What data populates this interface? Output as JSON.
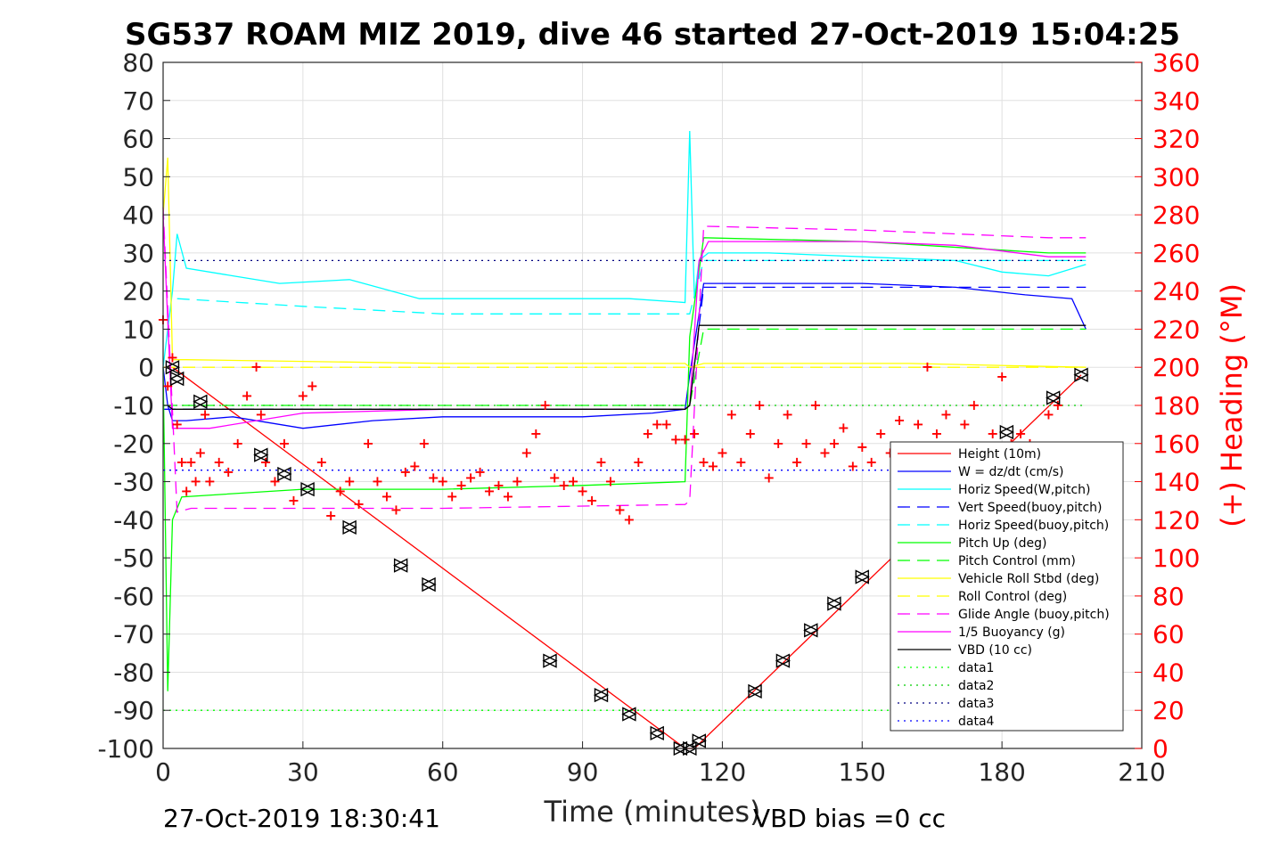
{
  "chart_data": {
    "type": "line",
    "title": "SG537 ROAM MIZ 2019, dive 46 started 27-Oct-2019 15:04:25",
    "xlabel": "Time (minutes)",
    "ylabel": "",
    "y2label": "(+) Heading (°M)",
    "xlim": [
      0,
      210
    ],
    "ylim": [
      -100,
      80
    ],
    "y2lim": [
      0,
      360
    ],
    "x_ticks": [
      "0",
      "30",
      "60",
      "90",
      "120",
      "150",
      "180",
      "210"
    ],
    "y_ticks": [
      "80",
      "70",
      "60",
      "50",
      "40",
      "30",
      "20",
      "10",
      "0",
      "-10",
      "-20",
      "-30",
      "-40",
      "-50",
      "-60",
      "-70",
      "-80",
      "-90",
      "-100"
    ],
    "y2_ticks": [
      "360",
      "340",
      "320",
      "300",
      "280",
      "260",
      "240",
      "220",
      "200",
      "180",
      "160",
      "140",
      "120",
      "100",
      "80",
      "60",
      "40",
      "20",
      "0"
    ],
    "grid": true,
    "legend_position": "lower-right",
    "footer_left": "27-Oct-2019 18:30:41",
    "footer_right": "VBD bias =0 cc",
    "legend": [
      {
        "name": "Height (10m)",
        "color": "#ff0000",
        "dash": "solid"
      },
      {
        "name": "W = dz/dt (cm/s)",
        "color": "#0000ff",
        "dash": "solid"
      },
      {
        "name": "Horiz Speed(W,pitch)",
        "color": "#00ffff",
        "dash": "solid"
      },
      {
        "name": "Vert Speed(buoy,pitch)",
        "color": "#0000ff",
        "dash": "dashed"
      },
      {
        "name": "Horiz Speed(buoy,pitch)",
        "color": "#00ffff",
        "dash": "dashed"
      },
      {
        "name": "Pitch Up (deg)",
        "color": "#00ff00",
        "dash": "solid"
      },
      {
        "name": "Pitch Control (mm)",
        "color": "#00ff00",
        "dash": "dashed"
      },
      {
        "name": "Vehicle Roll Stbd (deg)",
        "color": "#ffff00",
        "dash": "solid"
      },
      {
        "name": "Roll Control (deg)",
        "color": "#ffff00",
        "dash": "dashed"
      },
      {
        "name": "Glide Angle (buoy,pitch)",
        "color": "#ff00ff",
        "dash": "dashed"
      },
      {
        "name": "1/5 Buoyancy (g)",
        "color": "#ff00ff",
        "dash": "solid"
      },
      {
        "name": "VBD (10 cc)",
        "color": "#000000",
        "dash": "solid"
      },
      {
        "name": "data1",
        "color": "#00ff00",
        "dash": "dotted"
      },
      {
        "name": "data2",
        "color": "#00cc00",
        "dash": "dotted"
      },
      {
        "name": "data3",
        "color": "#000080",
        "dash": "dotted"
      },
      {
        "name": "data4",
        "color": "#0000ff",
        "dash": "dotted"
      }
    ],
    "series": [
      {
        "name": "Height (10m)",
        "axis": "left",
        "color": "#ff0000",
        "dash": "solid",
        "x": [
          0,
          2,
          112,
          114,
          197
        ],
        "y": [
          0,
          0,
          -100,
          -100,
          -2
        ]
      },
      {
        "name": "W = dz/dt (cm/s)",
        "axis": "left",
        "color": "#0000ff",
        "dash": "solid",
        "x": [
          0,
          1,
          2,
          5,
          15,
          30,
          45,
          60,
          75,
          90,
          105,
          112,
          113,
          116,
          130,
          150,
          170,
          185,
          195,
          198
        ],
        "y": [
          0,
          -10,
          -14,
          -14,
          -13,
          -16,
          -14,
          -13,
          -13,
          -13,
          -12,
          -11,
          -2,
          22,
          22,
          22,
          21,
          19,
          18,
          10
        ]
      },
      {
        "name": "Horiz Speed(W,pitch)",
        "axis": "left",
        "color": "#00ffff",
        "dash": "solid",
        "x": [
          0,
          2,
          3,
          5,
          15,
          25,
          40,
          55,
          70,
          85,
          100,
          112,
          113,
          114,
          115,
          117,
          130,
          150,
          170,
          180,
          190,
          198
        ],
        "y": [
          0,
          20,
          35,
          26,
          24,
          22,
          23,
          18,
          18,
          18,
          18,
          17,
          62,
          18,
          28,
          30,
          30,
          29,
          28,
          25,
          24,
          27
        ]
      },
      {
        "name": "Vert Speed(buoy,pitch)",
        "axis": "left",
        "color": "#0000ff",
        "dash": "dashed",
        "x": [
          0,
          112,
          113,
          116,
          198
        ],
        "y": [
          -11,
          -11,
          -10,
          21,
          21
        ]
      },
      {
        "name": "Horiz Speed(buoy,pitch)",
        "axis": "left",
        "color": "#00ffff",
        "dash": "dashed",
        "x": [
          3,
          30,
          60,
          90,
          112,
          113,
          116,
          198
        ],
        "y": [
          18,
          16,
          14,
          14,
          14,
          14,
          28,
          28
        ]
      },
      {
        "name": "Pitch Up (deg)",
        "axis": "left",
        "color": "#00ff00",
        "dash": "solid",
        "x": [
          0,
          1,
          2,
          4,
          30,
          60,
          90,
          112,
          113,
          116,
          150,
          190,
          198
        ],
        "y": [
          0,
          -85,
          -40,
          -34,
          -32,
          -32,
          -31,
          -30,
          8,
          34,
          33,
          30,
          30
        ]
      },
      {
        "name": "Pitch Control (mm)",
        "axis": "left",
        "color": "#00ff00",
        "dash": "dashed",
        "x": [
          0,
          112,
          113,
          116,
          198
        ],
        "y": [
          -10,
          -10,
          -10,
          10,
          10
        ]
      },
      {
        "name": "Vehicle Roll Stbd (deg)",
        "axis": "left",
        "color": "#ffff00",
        "dash": "solid",
        "x": [
          0,
          1,
          2,
          5,
          60,
          112,
          113,
          116,
          160,
          198
        ],
        "y": [
          40,
          55,
          2,
          2,
          1,
          1,
          0,
          1,
          1,
          0
        ]
      },
      {
        "name": "Roll Control (deg)",
        "axis": "left",
        "color": "#ffff00",
        "dash": "dashed",
        "x": [
          0,
          198
        ],
        "y": [
          0,
          0
        ]
      },
      {
        "name": "Glide Angle (buoy,pitch)",
        "axis": "left",
        "color": "#ff00ff",
        "dash": "dashed",
        "x": [
          0,
          3,
          6,
          60,
          112,
          113,
          116,
          150,
          190,
          198
        ],
        "y": [
          42,
          -38,
          -37,
          -37,
          -36,
          -35,
          37,
          36,
          34,
          34
        ]
      },
      {
        "name": "1/5 Buoyancy (g)",
        "axis": "left",
        "color": "#ff00ff",
        "dash": "solid",
        "x": [
          0,
          2,
          10,
          30,
          60,
          112,
          113,
          115,
          117,
          150,
          170,
          190,
          198
        ],
        "y": [
          40,
          -16,
          -16,
          -12,
          -11,
          -11,
          -10,
          28,
          33,
          33,
          32,
          29,
          29
        ]
      },
      {
        "name": "VBD (10 cc)",
        "axis": "left",
        "color": "#000000",
        "dash": "solid",
        "x": [
          0,
          1,
          2,
          112,
          113,
          115,
          198
        ],
        "y": [
          -10,
          -10,
          -11,
          -11,
          -10,
          11,
          11
        ]
      },
      {
        "name": "data1",
        "axis": "left",
        "color": "#00ff00",
        "dash": "dotted",
        "x": [
          0,
          198
        ],
        "y": [
          -90,
          -90
        ]
      },
      {
        "name": "data2",
        "axis": "left",
        "color": "#00cc00",
        "dash": "dotted",
        "x": [
          0,
          198
        ],
        "y": [
          -10,
          -10
        ]
      },
      {
        "name": "data3",
        "axis": "left",
        "color": "#000080",
        "dash": "dotted",
        "x": [
          0,
          198
        ],
        "y": [
          28,
          28
        ]
      },
      {
        "name": "data4",
        "axis": "left",
        "color": "#0000ff",
        "dash": "dotted",
        "x": [
          0,
          198
        ],
        "y": [
          -27,
          -27
        ]
      }
    ],
    "heading_points": {
      "axis": "right",
      "color": "#ff0000",
      "x": [
        0,
        1,
        2,
        3,
        4,
        5,
        6,
        7,
        8,
        9,
        10,
        12,
        14,
        16,
        18,
        20,
        21,
        22,
        24,
        26,
        28,
        30,
        32,
        34,
        36,
        38,
        40,
        42,
        44,
        46,
        48,
        50,
        52,
        54,
        56,
        58,
        60,
        62,
        64,
        66,
        68,
        70,
        72,
        74,
        76,
        78,
        80,
        82,
        84,
        86,
        88,
        90,
        92,
        94,
        96,
        98,
        100,
        102,
        104,
        106,
        108,
        110,
        112,
        114,
        116,
        118,
        120,
        122,
        124,
        126,
        128,
        130,
        132,
        134,
        136,
        138,
        140,
        142,
        144,
        146,
        148,
        150,
        152,
        154,
        156,
        158,
        160,
        162,
        164,
        166,
        168,
        170,
        172,
        174,
        176,
        178,
        180,
        182,
        184,
        186,
        188,
        190,
        192
      ],
      "y": [
        225,
        190,
        205,
        170,
        150,
        135,
        150,
        140,
        155,
        175,
        140,
        150,
        145,
        160,
        185,
        200,
        175,
        150,
        140,
        160,
        130,
        185,
        190,
        150,
        122,
        135,
        140,
        128,
        160,
        140,
        132,
        125,
        145,
        148,
        160,
        142,
        140,
        132,
        138,
        142,
        145,
        135,
        138,
        132,
        140,
        155,
        165,
        180,
        142,
        138,
        140,
        135,
        130,
        150,
        140,
        125,
        120,
        150,
        165,
        170,
        170,
        162,
        162,
        165,
        150,
        148,
        155,
        175,
        150,
        165,
        180,
        142,
        160,
        175,
        150,
        160,
        180,
        155,
        160,
        168,
        148,
        158,
        150,
        165,
        155,
        172,
        150,
        170,
        200,
        165,
        175,
        155,
        170,
        180,
        150,
        165,
        195,
        160,
        165,
        160,
        150,
        175,
        180
      ]
    },
    "markers": {
      "color": "#000000",
      "x": [
        2,
        3,
        8,
        21,
        26,
        31,
        40,
        51,
        57,
        83,
        94,
        100,
        106,
        111,
        113,
        115,
        127,
        133,
        139,
        144,
        150,
        181,
        191,
        197
      ],
      "y": [
        0,
        -3,
        -9,
        -23,
        -28,
        -32,
        -42,
        -52,
        -57,
        -77,
        -86,
        -91,
        -96,
        -100,
        -100,
        -98,
        -85,
        -77,
        -69,
        -62,
        -55,
        -17,
        -8,
        -2
      ]
    }
  }
}
